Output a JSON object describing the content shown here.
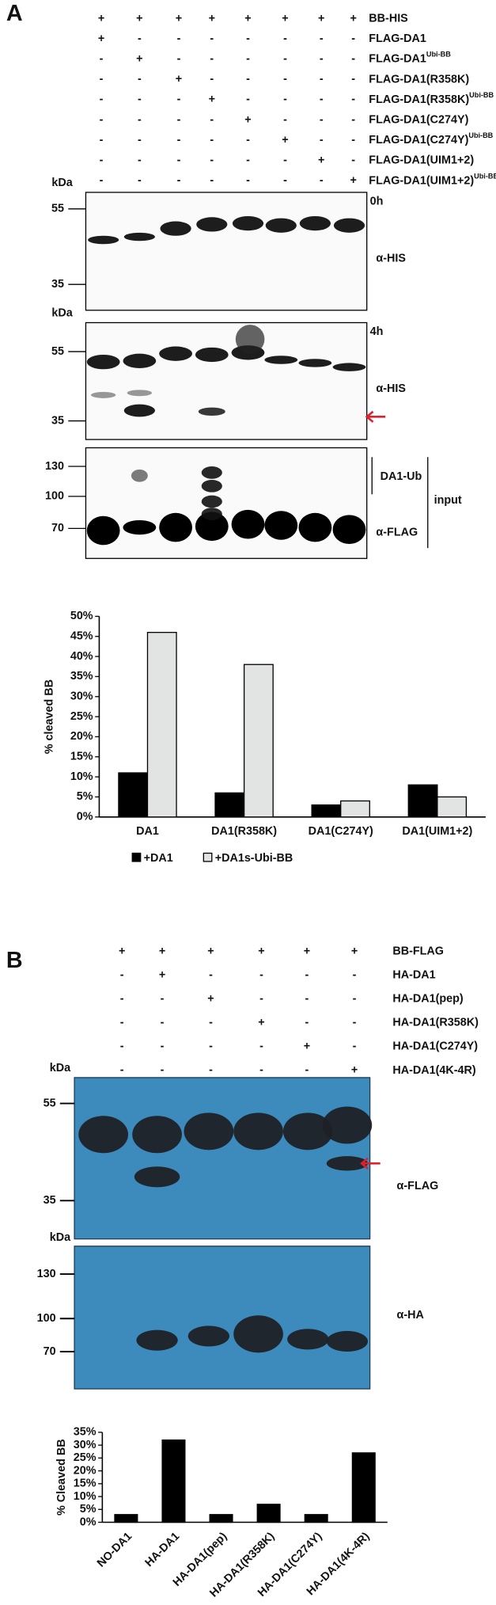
{
  "chart_data": [
    {
      "type": "bar",
      "ylabel": "% cleaved BB",
      "categories": [
        "DA1",
        "DA1(R358K)",
        "DA1(C274Y)",
        "DA1(UIM1+2)"
      ],
      "series": [
        {
          "name": "+DA1",
          "color": "#000000",
          "values": [
            11,
            6,
            3,
            8
          ]
        },
        {
          "name": "+DA1s-Ubi-BB",
          "color": "#e2e4e4",
          "values": [
            46,
            38,
            4,
            5
          ]
        }
      ],
      "ylim": [
        0,
        50
      ],
      "yticks": [
        {
          "value": 0,
          "label": "0%"
        },
        {
          "value": 5,
          "label": "5%"
        },
        {
          "value": 10,
          "label": "10%"
        },
        {
          "value": 15,
          "label": "15%"
        },
        {
          "value": 20,
          "label": "20%"
        },
        {
          "value": 25,
          "label": "25%"
        },
        {
          "value": 30,
          "label": "30%"
        },
        {
          "value": 35,
          "label": "35%"
        },
        {
          "value": 40,
          "label": "40%"
        },
        {
          "value": 45,
          "label": "45%"
        },
        {
          "value": 50,
          "label": "50%"
        }
      ],
      "legend": "bottom"
    },
    {
      "type": "bar",
      "ylabel": "% Cleaved BB",
      "categories": [
        "NO-DA1",
        "HA-DA1",
        "HA-DA1(pep)",
        "HA-DA1(R358K)",
        "HA-DA1(C274Y)",
        "HA-DA1(4K-4R)"
      ],
      "values": [
        3,
        32,
        3,
        7,
        3,
        27
      ],
      "color": "#000000",
      "ylim": [
        0,
        35
      ],
      "yticks": [
        {
          "value": 0,
          "label": "0%"
        },
        {
          "value": 5,
          "label": "5%"
        },
        {
          "value": 10,
          "label": "10%"
        },
        {
          "value": 15,
          "label": "15%"
        },
        {
          "value": 20,
          "label": "20%"
        },
        {
          "value": 25,
          "label": "25%"
        },
        {
          "value": 30,
          "label": "30%"
        },
        {
          "value": 35,
          "label": "35%"
        }
      ]
    }
  ],
  "panel_a": {
    "letter": "A",
    "rows": [
      {
        "label": "BB-HIS",
        "signs": [
          "+",
          "+",
          "+",
          "+",
          "+",
          "+",
          "+",
          "+"
        ]
      },
      {
        "label": "FLAG-DA1",
        "signs": [
          "+",
          "-",
          "-",
          "-",
          "-",
          "-",
          "-",
          "-"
        ]
      },
      {
        "label": "FLAG-DA1",
        "sup": "Ubi-BB",
        "signs": [
          "-",
          "+",
          "-",
          "-",
          "-",
          "-",
          "-",
          "-"
        ]
      },
      {
        "label": "FLAG-DA1(R358K)",
        "signs": [
          "-",
          "-",
          "+",
          "-",
          "-",
          "-",
          "-",
          "-"
        ]
      },
      {
        "label": "FLAG-DA1(R358K)",
        "sup": "Ubi-BB",
        "signs": [
          "-",
          "-",
          "-",
          "+",
          "-",
          "-",
          "-",
          "-"
        ]
      },
      {
        "label": "FLAG-DA1(C274Y)",
        "signs": [
          "-",
          "-",
          "-",
          "-",
          "+",
          "-",
          "-",
          "-"
        ]
      },
      {
        "label": "FLAG-DA1(C274Y)",
        "sup": "Ubi-BB",
        "signs": [
          "-",
          "-",
          "-",
          "-",
          "-",
          "+",
          "-",
          "-"
        ]
      },
      {
        "label": "FLAG-DA1(UIM1+2)",
        "signs": [
          "-",
          "-",
          "-",
          "-",
          "-",
          "-",
          "+",
          "-"
        ]
      },
      {
        "label": "FLAG-DA1(UIM1+2)",
        "sup": "Ubi-BB",
        "signs": [
          "-",
          "-",
          "-",
          "-",
          "-",
          "-",
          "-",
          "+"
        ]
      }
    ],
    "blots": [
      {
        "kda": "kDa",
        "markers": [
          "55",
          "35"
        ],
        "time": "0h",
        "antibody": "α-HIS"
      },
      {
        "kda": "kDa",
        "markers": [
          "55",
          "35"
        ],
        "time": "4h",
        "antibody": "α-HIS"
      },
      {
        "markers": [
          "130",
          "100",
          "70"
        ],
        "annotation": "DA1-Ub",
        "antibody": "α-FLAG",
        "group": "input"
      }
    ]
  },
  "panel_b": {
    "letter": "B",
    "rows": [
      {
        "label": "BB-FLAG",
        "signs": [
          "+",
          "+",
          "+",
          "+",
          "+",
          "+"
        ]
      },
      {
        "label": "HA-DA1",
        "signs": [
          "-",
          "+",
          "-",
          "-",
          "-",
          "-"
        ]
      },
      {
        "label": "HA-DA1(pep)",
        "signs": [
          "-",
          "-",
          "+",
          "-",
          "-",
          "-"
        ]
      },
      {
        "label": "HA-DA1(R358K)",
        "signs": [
          "-",
          "-",
          "-",
          "+",
          "-",
          "-"
        ]
      },
      {
        "label": "HA-DA1(C274Y)",
        "signs": [
          "-",
          "-",
          "-",
          "-",
          "+",
          "-"
        ]
      },
      {
        "label": "HA-DA1(4K-4R)",
        "signs": [
          "-",
          "-",
          "-",
          "-",
          "-",
          "+"
        ]
      }
    ],
    "blots": [
      {
        "kda": "kDa",
        "markers": [
          "55",
          "35"
        ],
        "antibody": "α-FLAG"
      },
      {
        "kda": "kDa",
        "markers": [
          "130",
          "100",
          "70"
        ],
        "antibody": "α-HA"
      }
    ]
  }
}
